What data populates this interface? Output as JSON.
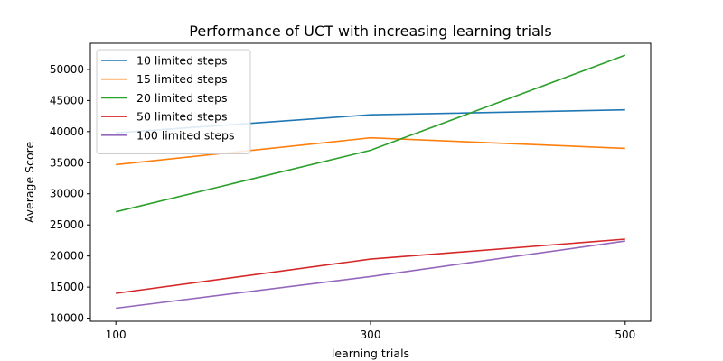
{
  "chart_data": {
    "type": "line",
    "title": "Performance of UCT with increasing learning trials",
    "xlabel": "learning trials",
    "ylabel": "Average Score",
    "x": [
      100,
      300,
      500
    ],
    "xticks": [
      "100",
      "300",
      "500"
    ],
    "yticks": [
      "10000",
      "15000",
      "20000",
      "25000",
      "30000",
      "35000",
      "40000",
      "45000",
      "50000"
    ],
    "xlim": [
      80,
      520
    ],
    "ylim": [
      9500,
      54200
    ],
    "legend_position": "top-left",
    "grid": false,
    "series": [
      {
        "name": "10 limited steps",
        "color": "#1f77b4",
        "values": [
          39800,
          42700,
          43500
        ]
      },
      {
        "name": "15 limited steps",
        "color": "#ff7f0e",
        "values": [
          34700,
          39000,
          37300
        ]
      },
      {
        "name": "20 limited steps",
        "color": "#2ca02c",
        "values": [
          27100,
          37000,
          52300
        ]
      },
      {
        "name": "50 limited steps",
        "color": "#d62728",
        "values": [
          14000,
          19500,
          22700
        ]
      },
      {
        "name": "100 limited steps",
        "color": "#9467bd",
        "values": [
          11600,
          16700,
          22400
        ]
      }
    ]
  }
}
